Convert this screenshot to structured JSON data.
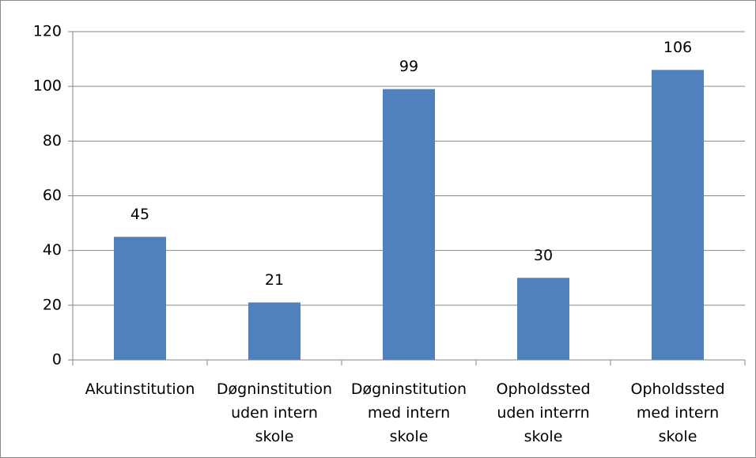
{
  "chart_data": {
    "type": "bar",
    "categories": [
      [
        "Akutinstitution"
      ],
      [
        "Døgninstitution",
        "uden intern",
        "skole"
      ],
      [
        "Døgninstitution",
        "med intern",
        "skole"
      ],
      [
        "Opholdssted",
        "uden interrn",
        "skole"
      ],
      [
        "Opholdssted",
        "med intern",
        "skole"
      ]
    ],
    "values": [
      45,
      21,
      99,
      30,
      106
    ],
    "color": "#4f81bd",
    "ylim": [
      0,
      120
    ],
    "yticks": [
      0,
      20,
      40,
      60,
      80,
      100,
      120
    ],
    "grid": true
  }
}
